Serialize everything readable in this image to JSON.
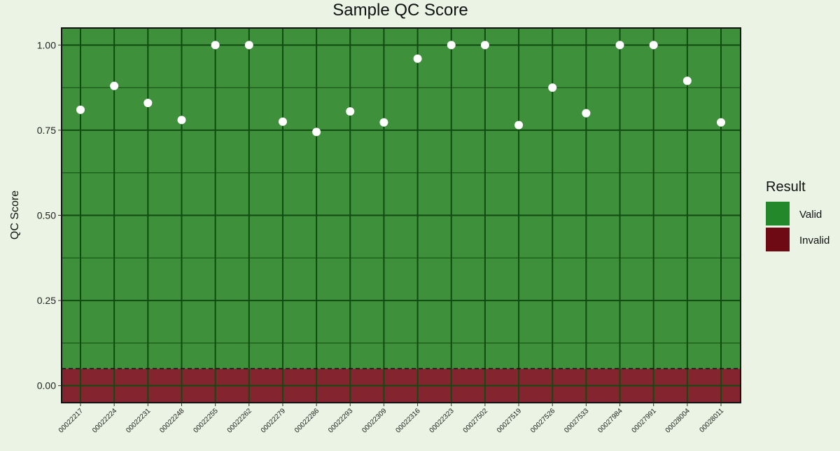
{
  "chart_data": {
    "type": "scatter",
    "title": "Sample QC Score",
    "xlabel": "",
    "ylabel": "QC Score",
    "ylim": [
      -0.05,
      1.05
    ],
    "y_ticks": [
      "0.00",
      "0.25",
      "0.50",
      "0.75",
      "1.00"
    ],
    "y_tick_values": [
      0,
      0.25,
      0.5,
      0.75,
      1.0
    ],
    "threshold": 0.05,
    "categories": [
      "00022217",
      "00022224",
      "00022231",
      "00022248",
      "00022255",
      "00022262",
      "00022279",
      "00022286",
      "00022293",
      "00022309",
      "00022316",
      "00022323",
      "00027502",
      "00027519",
      "00027526",
      "00027533",
      "00027984",
      "00027991",
      "00028004",
      "00028011"
    ],
    "values": [
      0.81,
      0.88,
      0.83,
      0.78,
      1.0,
      1.0,
      0.775,
      0.745,
      0.805,
      0.773,
      0.96,
      1.0,
      1.0,
      0.765,
      0.875,
      0.8,
      1.0,
      1.0,
      0.895,
      0.773
    ],
    "grid": true,
    "legend": {
      "title": "Result",
      "position": "right",
      "items": [
        {
          "label": "Valid",
          "color": "#22882a"
        },
        {
          "label": "Invalid",
          "color": "#6e0a14"
        }
      ]
    },
    "colors": {
      "valid_region": "#3e913a",
      "invalid_region": "#83242f",
      "grid": "#0f4a10",
      "point": "#ffffff"
    }
  }
}
